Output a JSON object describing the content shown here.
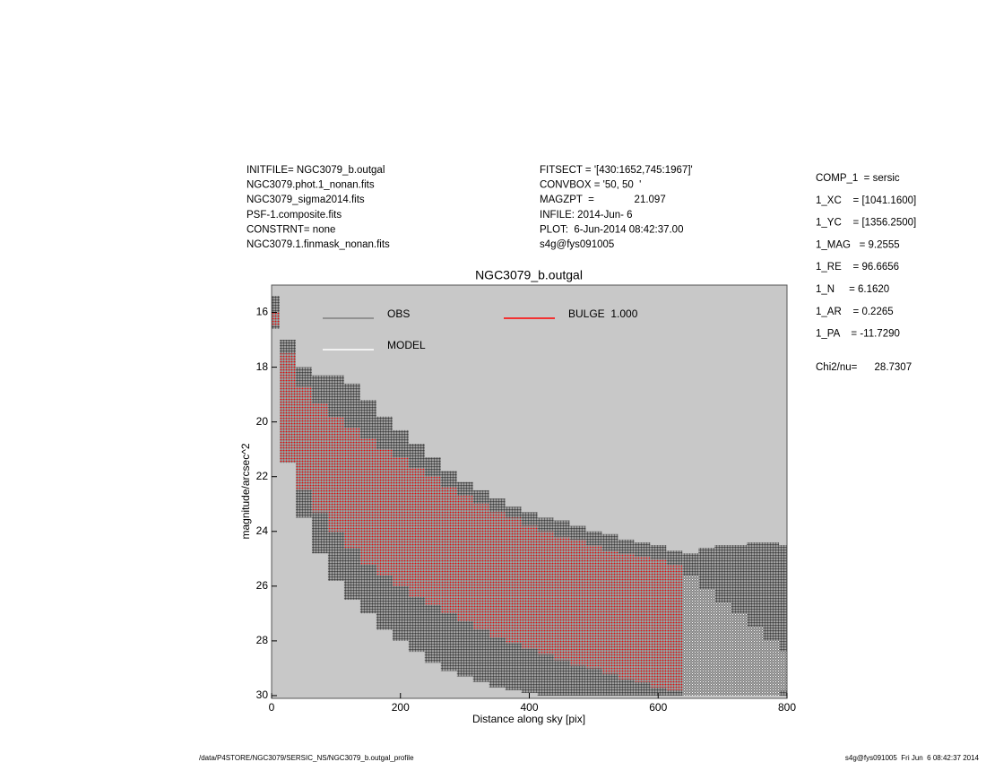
{
  "header": {
    "left": [
      "INITFILE= NGC3079_b.outgal",
      "NGC3079.phot.1_nonan.fits",
      "NGC3079_sigma2014.fits",
      "PSF-1.composite.fits",
      "CONSTRNT= none",
      "NGC3079.1.finmask_nonan.fits"
    ],
    "middle": [
      "FITSECT = '[430:1652,745:1967]'",
      "CONVBOX = '50, 50  '",
      "MAGZPT  =              21.097",
      "INFILE: 2014-Jun- 6",
      "PLOT:  6-Jun-2014 08:42:37.00",
      "s4g@fys091005"
    ],
    "right": [
      "COMP_1  = sersic",
      "1_XC    = [1041.1600]",
      "1_YC    = [1356.2500]",
      "1_MAG   = 9.2555",
      "1_RE    = 96.6656",
      "1_N     = 6.1620",
      "1_AR    = 0.2265",
      "1_PA    = -11.7290"
    ],
    "chi2": "Chi2/nu=      28.7307"
  },
  "footer": {
    "left": "/data/P4STORE/NGC3079/SERSIC_NS/NGC3079_b.outgal_profile",
    "right": "s4g@fys091005  Fri Jun  6 08:42:37 2014"
  },
  "chart_data": {
    "type": "scatter",
    "title": "NGC3079_b.outgal",
    "xlabel": "Distance along sky [pix]",
    "ylabel": "magnitude/arcsec^2",
    "xlim": [
      0,
      800
    ],
    "xticks": [
      0,
      200,
      400,
      600,
      800
    ],
    "ylim": [
      30.1,
      15
    ],
    "yticks": [
      16,
      18,
      20,
      22,
      24,
      26,
      28,
      30
    ],
    "background": "#c8c8c8",
    "x": [
      0,
      25,
      50,
      75,
      100,
      125,
      150,
      175,
      200,
      225,
      250,
      275,
      300,
      325,
      350,
      375,
      400,
      425,
      450,
      475,
      500,
      525,
      550,
      575,
      600,
      625,
      650,
      675,
      700,
      725,
      750,
      775,
      800
    ],
    "series": [
      {
        "name": "OBS",
        "color": "#404040",
        "legend_color": "#808080",
        "low": [
          15.4,
          17,
          18,
          18.3,
          18.3,
          18.6,
          19.2,
          19.8,
          20.3,
          20.8,
          21.3,
          21.8,
          22.2,
          22.5,
          22.8,
          23.1,
          23.3,
          23.5,
          23.6,
          23.8,
          24,
          24.1,
          24.3,
          24.4,
          24.5,
          24.7,
          24.8,
          24.6,
          24.5,
          24.5,
          24.4,
          24.4,
          24.5
        ],
        "high": [
          16.6,
          21.5,
          23.5,
          24.8,
          25.8,
          26.5,
          27,
          27.6,
          28,
          28.4,
          28.8,
          29.1,
          29.3,
          29.5,
          29.7,
          29.8,
          29.9,
          30,
          30,
          30,
          30,
          30,
          30,
          30,
          30,
          30,
          30,
          30,
          30,
          30,
          30,
          30,
          30
        ]
      },
      {
        "name": "MODEL",
        "color": "#ffffff",
        "legend_color": "#ffffff",
        "low": [
          16,
          17.5,
          18.7,
          19.3,
          19.8,
          20.2,
          20.6,
          21,
          21.3,
          21.7,
          22,
          22.4,
          22.7,
          23,
          23.3,
          23.5,
          23.8,
          24,
          24.2,
          24.3,
          24.5,
          24.7,
          24.8,
          24.9,
          25,
          25.2,
          25.6,
          26.1,
          26.6,
          27,
          27.5,
          28,
          28.4
        ],
        "high": [
          16.5,
          21.5,
          22.5,
          23.3,
          24,
          24.6,
          25.2,
          25.6,
          26,
          26.4,
          26.7,
          27,
          27.3,
          27.6,
          27.9,
          28.1,
          28.3,
          28.5,
          28.7,
          28.9,
          29,
          29.2,
          29.4,
          29.5,
          29.7,
          29.8,
          30,
          30,
          30,
          30,
          30,
          30,
          29.8
        ]
      },
      {
        "name": "BULGE  1.000",
        "color": "#ff0000",
        "legend_color": "#ff0000",
        "low": [
          16,
          17.5,
          18.7,
          19.3,
          19.8,
          20.2,
          20.6,
          21,
          21.3,
          21.7,
          22,
          22.4,
          22.7,
          23,
          23.3,
          23.5,
          23.8,
          24,
          24.2,
          24.3,
          24.5,
          24.7,
          24.8,
          24.9,
          25,
          25.2,
          null,
          null,
          null,
          null,
          null,
          null,
          null
        ],
        "high": [
          16.5,
          21.5,
          22.5,
          23.3,
          24,
          24.6,
          25.2,
          25.6,
          26,
          26.4,
          26.7,
          27,
          27.3,
          27.6,
          27.9,
          28.1,
          28.3,
          28.5,
          28.7,
          28.9,
          29,
          29.2,
          29.4,
          29.5,
          29.7,
          29.8,
          null,
          null,
          null,
          null,
          null,
          null,
          null
        ]
      }
    ]
  }
}
